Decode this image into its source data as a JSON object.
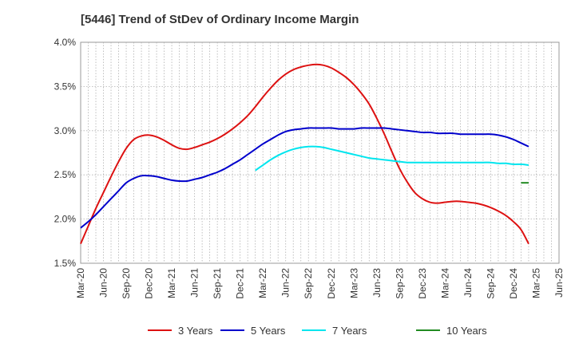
{
  "chart_data": {
    "type": "line",
    "title": "[5446]  Trend of StDev of Ordinary Income Margin",
    "xlabel": "",
    "ylabel": "",
    "ylim": [
      1.5,
      4.0
    ],
    "y_ticks": [
      "1.5%",
      "2.0%",
      "2.5%",
      "3.0%",
      "3.5%",
      "4.0%"
    ],
    "y_tick_values": [
      1.5,
      2.0,
      2.5,
      3.0,
      3.5,
      4.0
    ],
    "x_ticks": [
      "Mar-20",
      "Jun-20",
      "Sep-20",
      "Dec-20",
      "Mar-21",
      "Jun-21",
      "Sep-21",
      "Dec-21",
      "Mar-22",
      "Jun-22",
      "Sep-22",
      "Dec-22",
      "Mar-23",
      "Jun-23",
      "Sep-23",
      "Dec-23",
      "Mar-24",
      "Jun-24",
      "Sep-24",
      "Dec-24",
      "Mar-25",
      "Jun-25"
    ],
    "grid": true,
    "legend_position": "bottom",
    "series": [
      {
        "name": "3 Years",
        "color": "#dd1111",
        "points": [
          [
            "Mar-20",
            1.72
          ],
          [
            "Apr-20",
            1.92
          ],
          [
            "May-20",
            2.12
          ],
          [
            "Jun-20",
            2.3
          ],
          [
            "Jul-20",
            2.48
          ],
          [
            "Aug-20",
            2.65
          ],
          [
            "Sep-20",
            2.8
          ],
          [
            "Oct-20",
            2.9
          ],
          [
            "Nov-20",
            2.94
          ],
          [
            "Dec-20",
            2.95
          ],
          [
            "Jan-21",
            2.93
          ],
          [
            "Feb-21",
            2.89
          ],
          [
            "Mar-21",
            2.84
          ],
          [
            "Apr-21",
            2.8
          ],
          [
            "May-21",
            2.79
          ],
          [
            "Jun-21",
            2.81
          ],
          [
            "Jul-21",
            2.84
          ],
          [
            "Aug-21",
            2.87
          ],
          [
            "Sep-21",
            2.91
          ],
          [
            "Oct-21",
            2.96
          ],
          [
            "Nov-21",
            3.02
          ],
          [
            "Dec-21",
            3.09
          ],
          [
            "Jan-22",
            3.17
          ],
          [
            "Feb-22",
            3.27
          ],
          [
            "Mar-22",
            3.38
          ],
          [
            "Apr-22",
            3.48
          ],
          [
            "May-22",
            3.57
          ],
          [
            "Jun-22",
            3.64
          ],
          [
            "Jul-22",
            3.69
          ],
          [
            "Aug-22",
            3.72
          ],
          [
            "Sep-22",
            3.74
          ],
          [
            "Oct-22",
            3.75
          ],
          [
            "Nov-22",
            3.74
          ],
          [
            "Dec-22",
            3.71
          ],
          [
            "Jan-23",
            3.66
          ],
          [
            "Feb-23",
            3.6
          ],
          [
            "Mar-23",
            3.52
          ],
          [
            "Apr-23",
            3.42
          ],
          [
            "May-23",
            3.3
          ],
          [
            "Jun-23",
            3.14
          ],
          [
            "Jul-23",
            2.96
          ],
          [
            "Aug-23",
            2.76
          ],
          [
            "Sep-23",
            2.57
          ],
          [
            "Oct-23",
            2.42
          ],
          [
            "Nov-23",
            2.3
          ],
          [
            "Dec-23",
            2.23
          ],
          [
            "Jan-24",
            2.19
          ],
          [
            "Feb-24",
            2.18
          ],
          [
            "Mar-24",
            2.19
          ],
          [
            "Apr-24",
            2.2
          ],
          [
            "May-24",
            2.2
          ],
          [
            "Jun-24",
            2.19
          ],
          [
            "Jul-24",
            2.18
          ],
          [
            "Aug-24",
            2.16
          ],
          [
            "Sep-24",
            2.13
          ],
          [
            "Oct-24",
            2.09
          ],
          [
            "Nov-24",
            2.04
          ],
          [
            "Dec-24",
            1.97
          ],
          [
            "Jan-25",
            1.88
          ],
          [
            "Feb-25",
            1.72
          ]
        ]
      },
      {
        "name": "5 Years",
        "color": "#0000cc",
        "points": [
          [
            "Mar-20",
            1.9
          ],
          [
            "Apr-20",
            1.97
          ],
          [
            "May-20",
            2.05
          ],
          [
            "Jun-20",
            2.14
          ],
          [
            "Jul-20",
            2.23
          ],
          [
            "Aug-20",
            2.32
          ],
          [
            "Sep-20",
            2.41
          ],
          [
            "Oct-20",
            2.46
          ],
          [
            "Nov-20",
            2.49
          ],
          [
            "Dec-20",
            2.49
          ],
          [
            "Jan-21",
            2.48
          ],
          [
            "Feb-21",
            2.46
          ],
          [
            "Mar-21",
            2.44
          ],
          [
            "Apr-21",
            2.43
          ],
          [
            "May-21",
            2.43
          ],
          [
            "Jun-21",
            2.45
          ],
          [
            "Jul-21",
            2.47
          ],
          [
            "Aug-21",
            2.5
          ],
          [
            "Sep-21",
            2.53
          ],
          [
            "Oct-21",
            2.57
          ],
          [
            "Nov-21",
            2.62
          ],
          [
            "Dec-21",
            2.67
          ],
          [
            "Jan-22",
            2.73
          ],
          [
            "Feb-22",
            2.79
          ],
          [
            "Mar-22",
            2.85
          ],
          [
            "Apr-22",
            2.9
          ],
          [
            "May-22",
            2.95
          ],
          [
            "Jun-22",
            2.99
          ],
          [
            "Jul-22",
            3.01
          ],
          [
            "Aug-22",
            3.02
          ],
          [
            "Sep-22",
            3.03
          ],
          [
            "Oct-22",
            3.03
          ],
          [
            "Nov-22",
            3.03
          ],
          [
            "Dec-22",
            3.03
          ],
          [
            "Jan-23",
            3.02
          ],
          [
            "Feb-23",
            3.02
          ],
          [
            "Mar-23",
            3.02
          ],
          [
            "Apr-23",
            3.03
          ],
          [
            "May-23",
            3.03
          ],
          [
            "Jun-23",
            3.03
          ],
          [
            "Jul-23",
            3.03
          ],
          [
            "Aug-23",
            3.02
          ],
          [
            "Sep-23",
            3.01
          ],
          [
            "Oct-23",
            3.0
          ],
          [
            "Nov-23",
            2.99
          ],
          [
            "Dec-23",
            2.98
          ],
          [
            "Jan-24",
            2.98
          ],
          [
            "Feb-24",
            2.97
          ],
          [
            "Mar-24",
            2.97
          ],
          [
            "Apr-24",
            2.97
          ],
          [
            "May-24",
            2.96
          ],
          [
            "Jun-24",
            2.96
          ],
          [
            "Jul-24",
            2.96
          ],
          [
            "Aug-24",
            2.96
          ],
          [
            "Sep-24",
            2.96
          ],
          [
            "Oct-24",
            2.95
          ],
          [
            "Nov-24",
            2.93
          ],
          [
            "Dec-24",
            2.9
          ],
          [
            "Jan-25",
            2.86
          ],
          [
            "Feb-25",
            2.82
          ]
        ]
      },
      {
        "name": "7 Years",
        "color": "#00e5ee",
        "points": [
          [
            "Feb-22",
            2.55
          ],
          [
            "Mar-22",
            2.61
          ],
          [
            "Apr-22",
            2.67
          ],
          [
            "May-22",
            2.72
          ],
          [
            "Jun-22",
            2.76
          ],
          [
            "Jul-22",
            2.79
          ],
          [
            "Aug-22",
            2.81
          ],
          [
            "Sep-22",
            2.82
          ],
          [
            "Oct-22",
            2.82
          ],
          [
            "Nov-22",
            2.81
          ],
          [
            "Dec-22",
            2.79
          ],
          [
            "Jan-23",
            2.77
          ],
          [
            "Feb-23",
            2.75
          ],
          [
            "Mar-23",
            2.73
          ],
          [
            "Apr-23",
            2.71
          ],
          [
            "May-23",
            2.69
          ],
          [
            "Jun-23",
            2.68
          ],
          [
            "Jul-23",
            2.67
          ],
          [
            "Aug-23",
            2.66
          ],
          [
            "Sep-23",
            2.65
          ],
          [
            "Oct-23",
            2.64
          ],
          [
            "Nov-23",
            2.64
          ],
          [
            "Dec-23",
            2.64
          ],
          [
            "Jan-24",
            2.64
          ],
          [
            "Feb-24",
            2.64
          ],
          [
            "Mar-24",
            2.64
          ],
          [
            "Apr-24",
            2.64
          ],
          [
            "May-24",
            2.64
          ],
          [
            "Jun-24",
            2.64
          ],
          [
            "Jul-24",
            2.64
          ],
          [
            "Aug-24",
            2.64
          ],
          [
            "Sep-24",
            2.64
          ],
          [
            "Oct-24",
            2.63
          ],
          [
            "Nov-24",
            2.63
          ],
          [
            "Dec-24",
            2.62
          ],
          [
            "Jan-25",
            2.62
          ],
          [
            "Feb-25",
            2.61
          ]
        ]
      },
      {
        "name": "10 Years",
        "color": "#228b22",
        "points": [
          [
            "Jan-25",
            2.41
          ],
          [
            "Feb-25",
            2.41
          ]
        ]
      }
    ]
  }
}
